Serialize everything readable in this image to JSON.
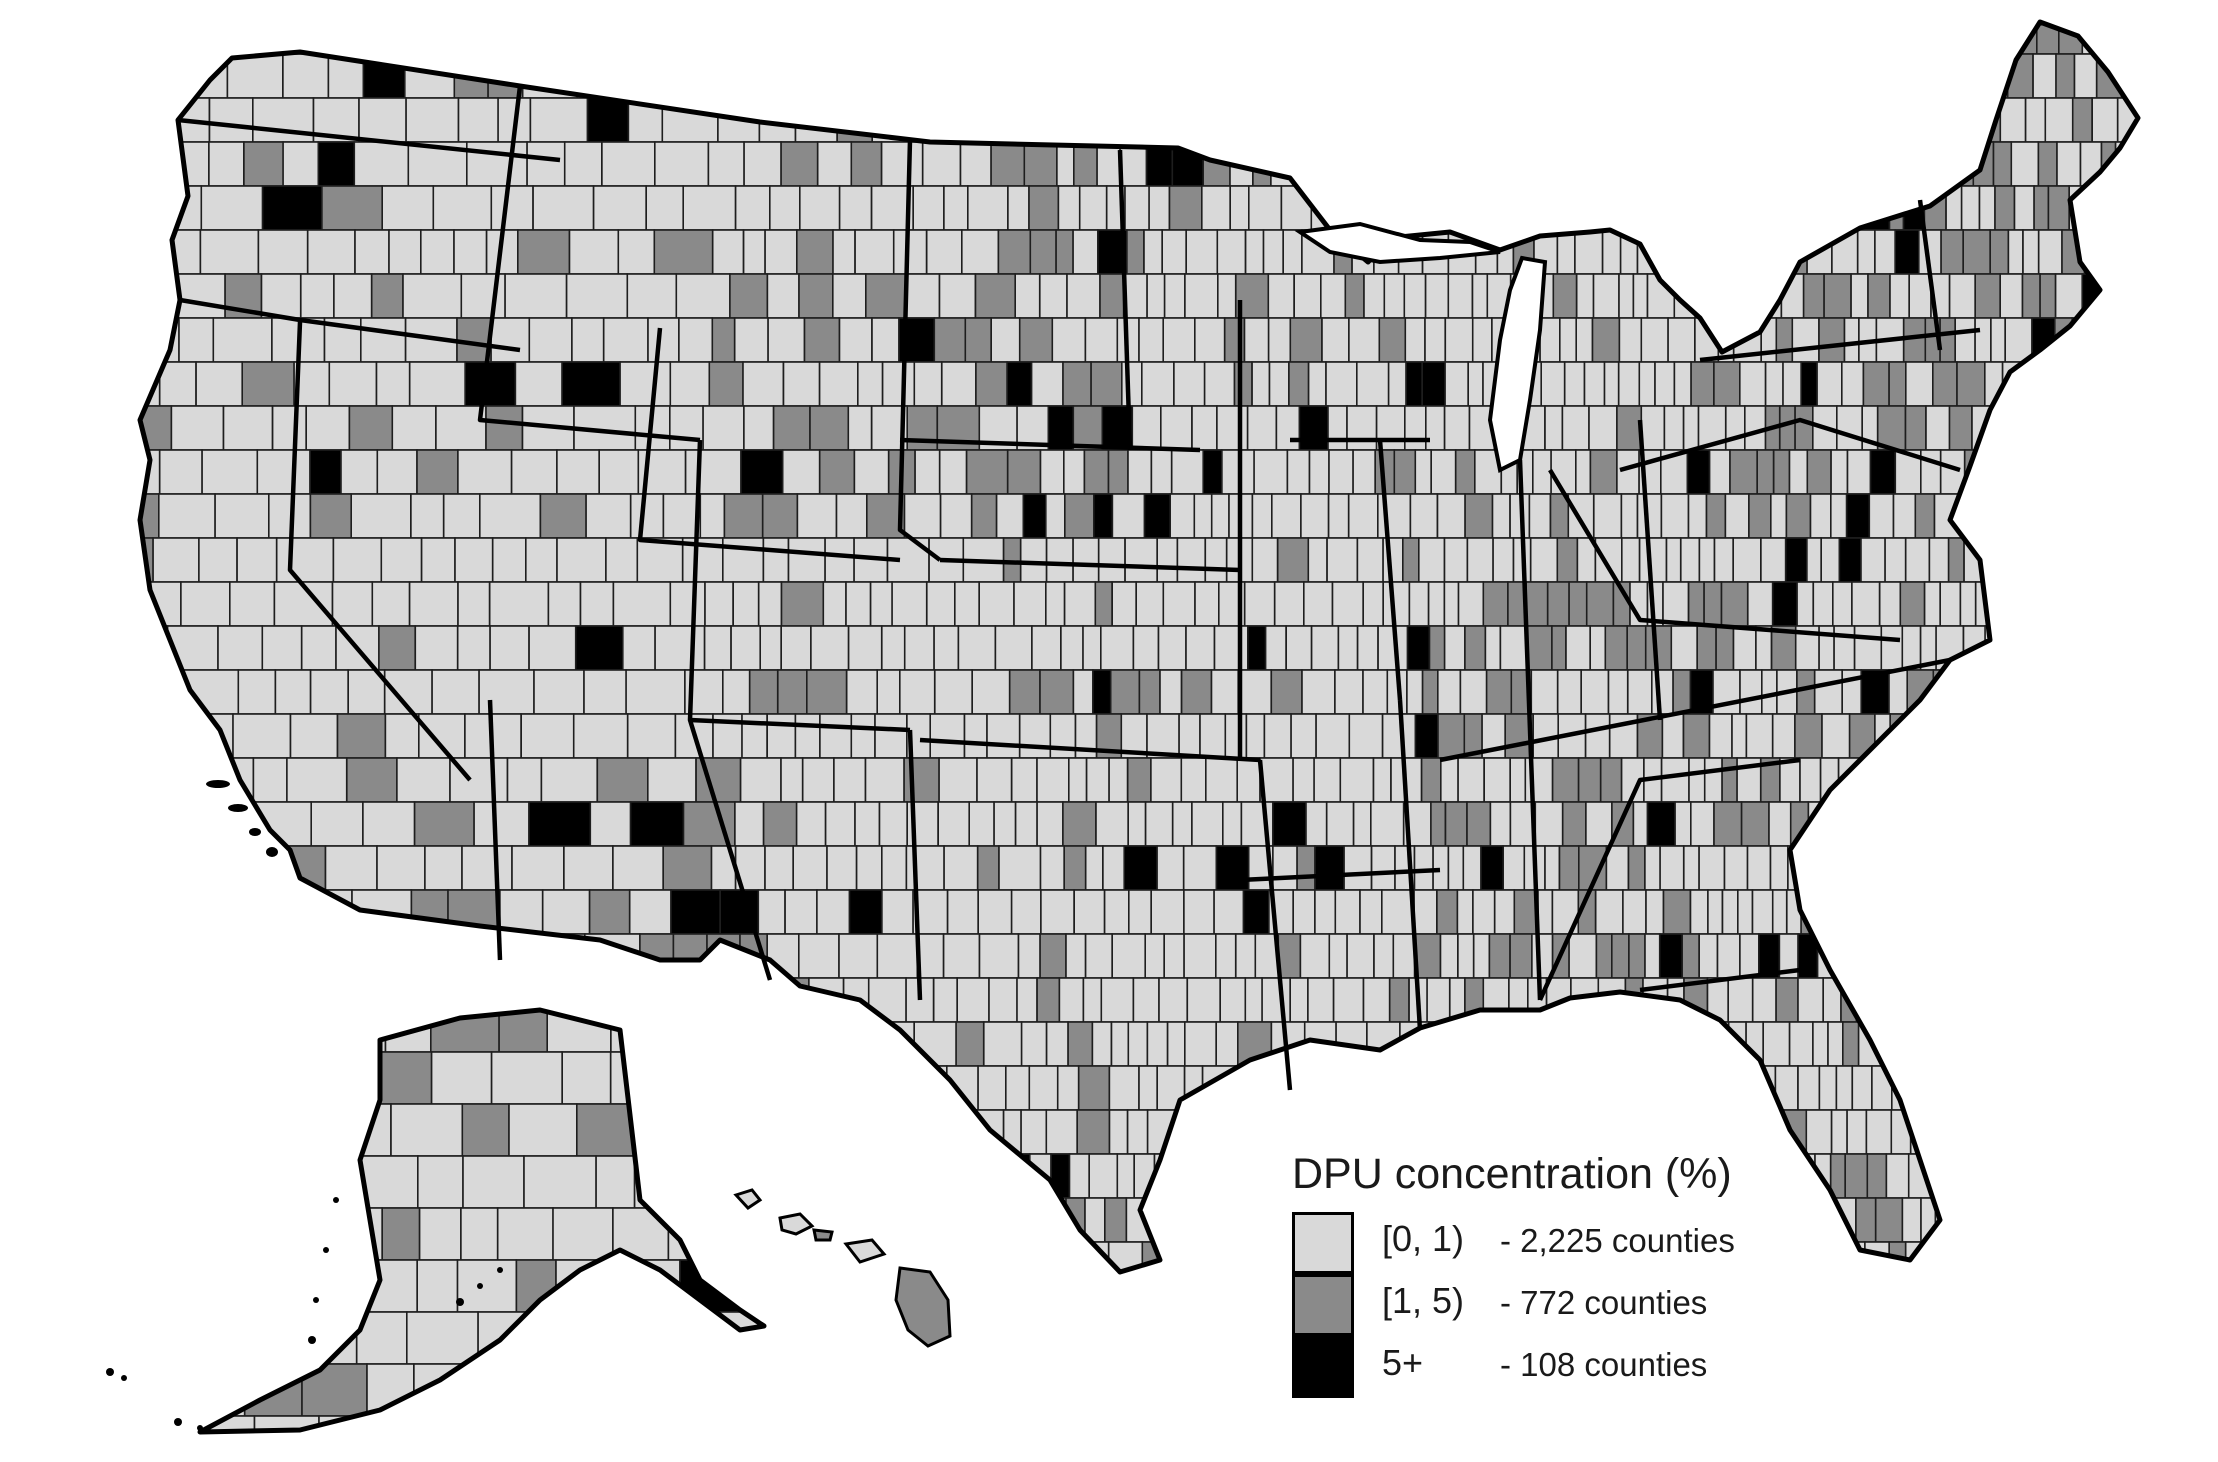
{
  "legend": {
    "title": "DPU concentration (%)",
    "classes": [
      {
        "range": "[0, 1)",
        "count": "- 2,225 counties",
        "color": "#d9d9d9"
      },
      {
        "range": "[1, 5)",
        "count": "- 772 counties",
        "color": "#8a8a8a"
      },
      {
        "range": "5+",
        "count": "- 108 counties",
        "color": "#000000"
      }
    ]
  },
  "colors": {
    "low": "#d9d9d9",
    "medium": "#8a8a8a",
    "high": "#000000",
    "county_border": "#1e1e1e",
    "state_border": "#000000",
    "background": "#ffffff"
  }
}
